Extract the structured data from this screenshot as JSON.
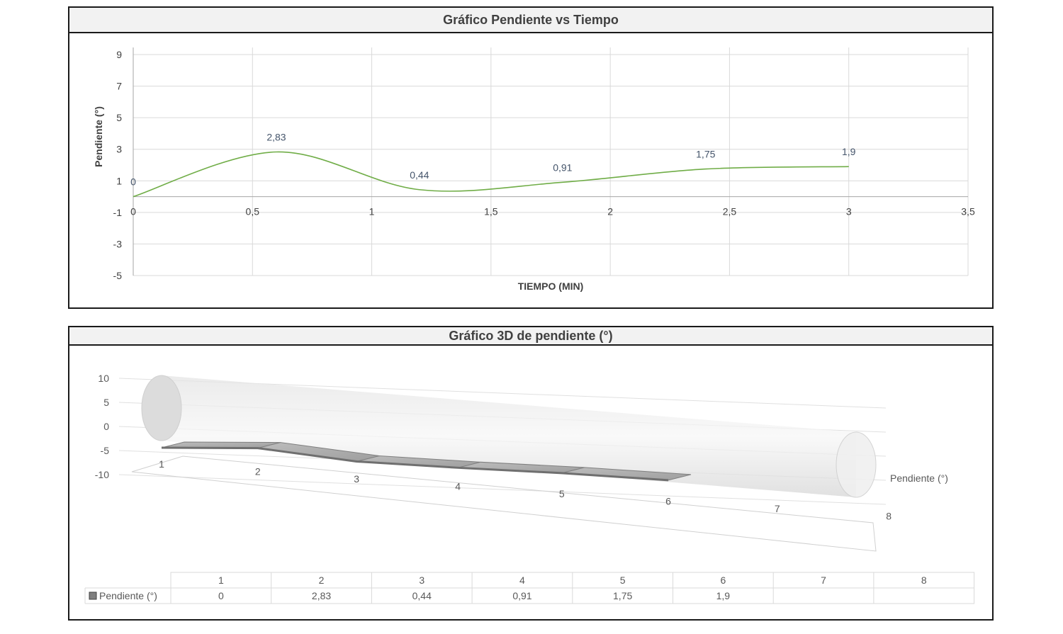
{
  "charts": {
    "top_title": "Gráfico Pendiente vs Tiempo",
    "bottom_title": "Gráfico 3D de pendiente (°)"
  },
  "colors": {
    "line": "#70ad47",
    "grid": "#d9d9d9",
    "axis_text": "#404040",
    "data_label": "#44546a"
  },
  "chart_data": [
    {
      "type": "line",
      "title": "Gráfico Pendiente vs Tiempo",
      "xlabel": "TIEMPO (MIN)",
      "ylabel": "Pendiente (°)",
      "xlim": [
        0,
        3.5
      ],
      "ylim": [
        -5,
        10
      ],
      "xticks": [
        "0",
        "0,5",
        "1",
        "1,5",
        "2",
        "2,5",
        "3",
        "3,5"
      ],
      "yticks": [
        "9",
        "7",
        "5",
        "3",
        "1",
        "-1",
        "-3",
        "-5"
      ],
      "grid": true,
      "smooth": true,
      "series": [
        {
          "x": [
            0,
            0.6,
            1.2,
            1.8,
            2.4,
            3.0
          ],
          "values": [
            0,
            2.83,
            0.44,
            0.91,
            1.75,
            1.9
          ],
          "labels": [
            "0",
            "2,83",
            "0,44",
            "0,91",
            "1,75",
            "1,9"
          ]
        }
      ]
    },
    {
      "type": "area",
      "title": "Gráfico 3D de pendiente (°)",
      "three_d": true,
      "categories": [
        "1",
        "2",
        "3",
        "4",
        "5",
        "6",
        "7",
        "8"
      ],
      "yticks": [
        "10",
        "5",
        "0",
        "-5",
        "-10"
      ],
      "ylim": [
        -10,
        10
      ],
      "series": [
        {
          "name": "Pendiente (°)",
          "values": [
            0,
            2.83,
            0.44,
            0.91,
            1.75,
            1.9,
            null,
            null
          ],
          "labels": [
            "0",
            "2,83",
            "0,44",
            "0,91",
            "1,75",
            "1,9",
            "",
            ""
          ]
        }
      ],
      "table_visible": true
    }
  ]
}
